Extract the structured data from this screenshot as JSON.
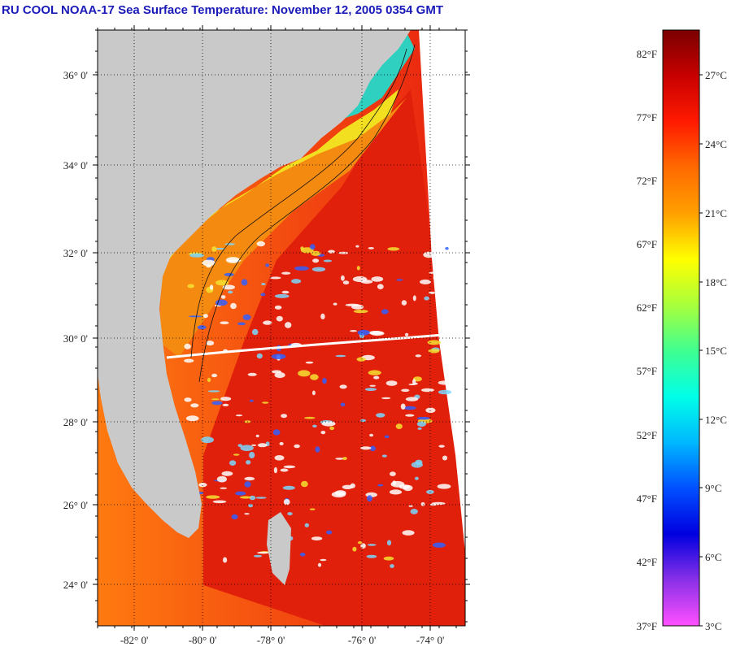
{
  "title": "RU COOL  NOAA-17  Sea Surface Temperature:  November 12, 2005 0354 GMT",
  "map": {
    "lat_ticks": [
      "36° 0'",
      "34° 0'",
      "32° 0'",
      "30° 0'",
      "28° 0'",
      "26° 0'",
      "24° 0'"
    ],
    "lon_ticks": [
      "-82° 0'",
      "-80° 0'",
      "-78° 0'",
      "-76° 0'",
      "-74° 0'"
    ],
    "gridlines": true,
    "colors": {
      "land": "#c9c9c9",
      "no_data": "#ffffff",
      "gulf_stream": "#e0200a",
      "shelf_warm": "#f58a10",
      "shelf_cool": "#f2e020",
      "coastal_cold": "#30d0c0",
      "cloud": "#ffffff",
      "contour": "#111111"
    }
  },
  "colorbar": {
    "fahrenheit_labels": [
      "82°F",
      "77°F",
      "72°F",
      "67°F",
      "62°F",
      "57°F",
      "52°F",
      "47°F",
      "42°F",
      "37°F"
    ],
    "celsius_labels": [
      "27°C",
      "24°C",
      "21°C",
      "18°C",
      "15°C",
      "12°C",
      "9°C",
      "6°C",
      "3°C"
    ],
    "gradient_top_to_bottom": [
      "#7a0000",
      "#c80000",
      "#ff1a00",
      "#ff6a00",
      "#ffa000",
      "#ffff00",
      "#a8ff3c",
      "#40ff90",
      "#00ffe8",
      "#00b8ff",
      "#0050ff",
      "#0000e0",
      "#8a30e8",
      "#ff50ff"
    ]
  }
}
